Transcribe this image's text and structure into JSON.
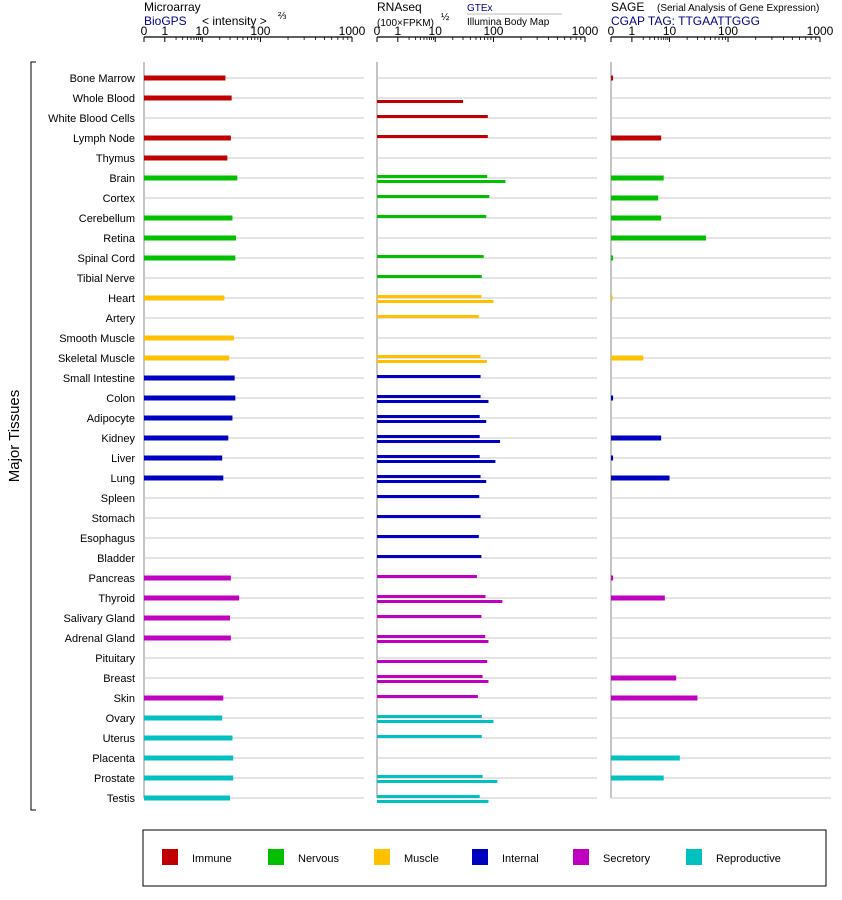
{
  "chart_data": {
    "type": "bar",
    "y_axis_title": "Major Tissues",
    "categories": [
      "Bone Marrow",
      "Whole Blood",
      "White Blood Cells",
      "Lymph Node",
      "Thymus",
      "Brain",
      "Cortex",
      "Cerebellum",
      "Retina",
      "Spinal Cord",
      "Tibial Nerve",
      "Heart",
      "Artery",
      "Smooth Muscle",
      "Skeletal Muscle",
      "Small Intestine",
      "Colon",
      "Adipocyte",
      "Kidney",
      "Liver",
      "Lung",
      "Spleen",
      "Stomach",
      "Esophagus",
      "Bladder",
      "Pancreas",
      "Thyroid",
      "Salivary Gland",
      "Adrenal Gland",
      "Pituitary",
      "Breast",
      "Skin",
      "Ovary",
      "Uterus",
      "Placenta",
      "Prostate",
      "Testis"
    ],
    "category_groups": [
      0,
      0,
      0,
      0,
      0,
      1,
      1,
      1,
      1,
      1,
      1,
      2,
      2,
      2,
      2,
      3,
      3,
      3,
      3,
      3,
      3,
      3,
      3,
      3,
      3,
      4,
      4,
      4,
      4,
      4,
      4,
      4,
      5,
      5,
      5,
      5,
      5
    ],
    "groups": [
      {
        "name": "Immune",
        "color": "#c00000"
      },
      {
        "name": "Nervous",
        "color": "#00c000"
      },
      {
        "name": "Muscle",
        "color": "#ffc000"
      },
      {
        "name": "Internal",
        "color": "#0000c0"
      },
      {
        "name": "Secretory",
        "color": "#c000c0"
      },
      {
        "name": "Reproductive",
        "color": "#00c0c0"
      }
    ],
    "ticks": [
      0,
      1,
      10,
      100,
      1000
    ],
    "xlim": [
      0,
      1000
    ],
    "panels": [
      {
        "key": "microarray",
        "title": "Microarray",
        "subtitle": "BioGPS",
        "scale_label": "< intensity >",
        "scale_exp": "⅔",
        "series": [
          {
            "values": [
              25,
              32,
              null,
              31,
              27,
              40,
              null,
              33,
              38,
              37,
              null,
              24,
              null,
              35,
              29,
              36,
              37,
              33,
              28,
              22,
              23,
              null,
              null,
              null,
              null,
              31,
              43,
              30,
              31,
              null,
              null,
              23,
              22,
              33,
              34,
              34,
              30
            ]
          }
        ]
      },
      {
        "key": "rnaseq",
        "title": "RNAseq",
        "scale_label": "(100×FPKM)",
        "scale_exp": "½",
        "legend_top": "GTEx",
        "legend_bottom": "Illumina Body Map",
        "series": [
          {
            "values": [
              null,
              null,
              80,
              80,
              null,
              78,
              85,
              75,
              null,
              68,
              63,
              62,
              56,
              null,
              60,
              60,
              60,
              58,
              58,
              58,
              60,
              57,
              60,
              56,
              62,
              52,
              73,
              62,
              72,
              null,
              65,
              54,
              63,
              63,
              null,
              65,
              58
            ]
          },
          {
            "values": [
              null,
              30,
              null,
              null,
              null,
              135,
              null,
              null,
              null,
              null,
              null,
              100,
              null,
              null,
              77,
              null,
              82,
              75,
              118,
              105,
              75,
              null,
              null,
              null,
              null,
              null,
              125,
              null,
              82,
              78,
              82,
              null,
              100,
              null,
              null,
              110,
              82
            ]
          }
        ]
      },
      {
        "key": "sage",
        "title": "SAGE",
        "title_note": "(Serial Analysis of Gene Expression)",
        "subtitle": "CGAP TAG: TTGAATTGGG",
        "series": [
          {
            "values": [
              0.1,
              null,
              null,
              6,
              null,
              7,
              5,
              6,
              42,
              0.1,
              null,
              0.05,
              null,
              null,
              2,
              null,
              0.1,
              null,
              6,
              0.1,
              10,
              null,
              null,
              null,
              null,
              0.1,
              7.5,
              null,
              null,
              null,
              13,
              30,
              null,
              null,
              15,
              7,
              null
            ]
          }
        ]
      }
    ],
    "legend_placement": "bottom",
    "grid": true
  }
}
